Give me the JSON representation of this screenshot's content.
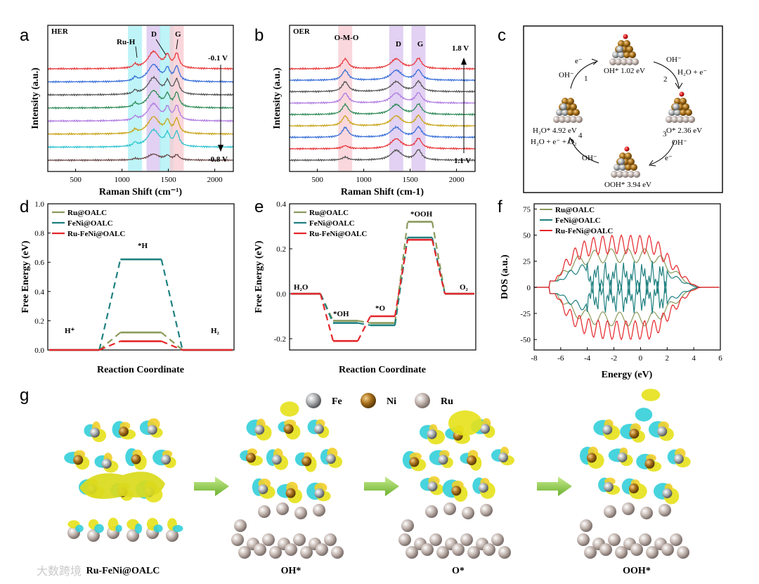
{
  "chart_data": [
    {
      "id": "a",
      "type": "line",
      "panel_label": "a",
      "title": "HER",
      "xlabel": "Raman Shift (cm⁻¹)",
      "ylabel": "Intensity (a.u.)",
      "xlim": [
        200,
        2200
      ],
      "xticks": [
        500,
        1000,
        1500,
        2000
      ],
      "peak_labels": [
        "Ru-H",
        "D",
        "G"
      ],
      "potential_top": "-0.1 V",
      "potential_bottom": "-0.8 V",
      "series": [
        {
          "potential": "-0.1 V",
          "color": "#e8383b"
        },
        {
          "potential": "",
          "color": "#3a6fd8"
        },
        {
          "potential": "",
          "color": "#555555"
        },
        {
          "potential": "",
          "color": "#2e8b57"
        },
        {
          "potential": "",
          "color": "#b07ce0"
        },
        {
          "potential": "",
          "color": "#c8a418"
        },
        {
          "potential": "",
          "color": "#2ec4cf"
        },
        {
          "potential": "-0.8 V",
          "color": "#6b4a4a"
        }
      ],
      "bands": [
        {
          "center": 1140,
          "color": "#a8f0f4"
        },
        {
          "center": 1340,
          "color": "#d8c2ee"
        },
        {
          "center": 1480,
          "color": "#a8f0f4"
        },
        {
          "center": 1590,
          "color": "#f7c9d0"
        }
      ]
    },
    {
      "id": "b",
      "type": "line",
      "panel_label": "b",
      "title": "OER",
      "xlabel": "Raman Shift (cm-1)",
      "ylabel": "Intensity (a.u.)",
      "xlim": [
        200,
        2200
      ],
      "xticks": [
        500,
        1000,
        1500,
        2000
      ],
      "peak_labels": [
        "O-M-O",
        "D",
        "G"
      ],
      "potential_top": "1.8 V",
      "potential_bottom": "1.1 V",
      "series": [
        {
          "color": "#e8383b"
        },
        {
          "color": "#3a6fd8"
        },
        {
          "color": "#555555"
        },
        {
          "color": "#b07ce0"
        },
        {
          "color": "#2e8b57"
        },
        {
          "color": "#c8a418"
        },
        {
          "color": "#3a6fd8"
        },
        {
          "color": "#e8383b"
        },
        {
          "color": "#555555"
        }
      ],
      "bands": [
        {
          "center": 800,
          "color": "#f7c9d0"
        },
        {
          "center": 1350,
          "color": "#d8c2ee"
        },
        {
          "center": 1590,
          "color": "#d8c2ee"
        }
      ]
    },
    {
      "id": "c",
      "type": "diagram",
      "panel_label": "c",
      "states": [
        "OH* 1.02 eV",
        "O* 2.36 eV",
        "OOH* 3.94 eV",
        "H₂O* 4.92 eV"
      ],
      "steps": [
        "1",
        "2",
        "3",
        "4"
      ],
      "species": [
        "e⁻",
        "OH⁻",
        "H₂O + e⁻",
        "H₂O + e⁻ + O₂"
      ]
    },
    {
      "id": "d",
      "type": "line",
      "panel_label": "d",
      "xlabel": "Reaction Coordinate",
      "ylabel": "Free Energy (eV)",
      "ylim": [
        0,
        1.0
      ],
      "yticks": [
        0.0,
        0.2,
        0.4,
        0.6,
        0.8,
        1.0
      ],
      "states": [
        "H⁺",
        "*H",
        "H₂"
      ],
      "series": [
        {
          "name": "Ru@OALC",
          "color": "#8a9a5b",
          "values": [
            0,
            0.12,
            0
          ]
        },
        {
          "name": "FeNi@OALC",
          "color": "#1f8080",
          "values": [
            0,
            0.62,
            0
          ]
        },
        {
          "name": "Ru-FeNi@OALC",
          "color": "#e5262a",
          "values": [
            0,
            0.06,
            0
          ]
        }
      ]
    },
    {
      "id": "e",
      "type": "line",
      "panel_label": "e",
      "xlabel": "Reaction Coordinate",
      "ylabel": "Free Energy (eV)",
      "ylim": [
        -0.25,
        0.4
      ],
      "yticks": [
        -0.2,
        0.0,
        0.2,
        0.4
      ],
      "states": [
        "H₂O",
        "*OH",
        "*O",
        "*OOH",
        "O₂"
      ],
      "series": [
        {
          "name": "Ru@OALC",
          "color": "#8a9a5b",
          "values": [
            0,
            -0.12,
            -0.13,
            0.32,
            0
          ]
        },
        {
          "name": "FeNi@OALC",
          "color": "#1f8080",
          "values": [
            0,
            -0.13,
            -0.14,
            0.25,
            0
          ]
        },
        {
          "name": "Ru-FeNi@OALC",
          "color": "#e5262a",
          "values": [
            0,
            -0.21,
            -0.1,
            0.24,
            0
          ]
        }
      ]
    },
    {
      "id": "f",
      "type": "line",
      "panel_label": "f",
      "xlabel": "Energy (eV)",
      "ylabel": "DOS (a.u.)",
      "xlim": [
        -8,
        6
      ],
      "ylim": [
        -60,
        80
      ],
      "xticks": [
        -8,
        -6,
        -4,
        -2,
        0,
        2,
        4,
        6
      ],
      "yticks": [
        -50,
        -25,
        0,
        25,
        50,
        75
      ],
      "series": [
        {
          "name": "Ru@OALC",
          "color": "#8a9a5b",
          "peak": 37
        },
        {
          "name": "FeNi@OALC",
          "color": "#1f8080",
          "peak": 25
        },
        {
          "name": "Ru-FeNi@OALC",
          "color": "#e5262a",
          "peak": 50
        }
      ]
    }
  ],
  "panel_g": {
    "label": "g",
    "legend": [
      {
        "element": "Fe",
        "color": "#a9acae"
      },
      {
        "element": "Ni",
        "color": "#a46c18"
      },
      {
        "element": "Ru",
        "color": "#b9aaa4"
      }
    ],
    "structures": [
      "Ru-FeNi@OALC",
      "OH*",
      "O*",
      "OOH*"
    ]
  },
  "watermark": "大数跨境"
}
